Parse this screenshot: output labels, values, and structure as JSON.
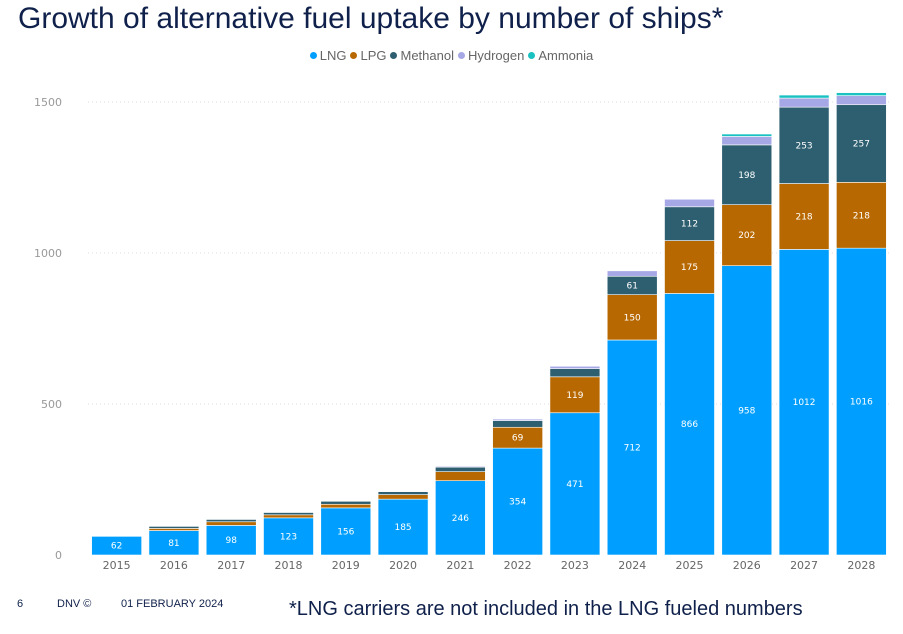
{
  "header": {
    "title": "Growth of alternative fuel uptake by number of ships*"
  },
  "colors": {
    "LNG": "#009fff",
    "LPG": "#b86800",
    "Methanol": "#2d5f70",
    "Hydrogen": "#a6a8e6",
    "Ammonia": "#19c1c1"
  },
  "chart_data": {
    "type": "bar",
    "stacked": true,
    "title": "",
    "xlabel": "",
    "ylabel": "",
    "ylim": [
      0,
      1500
    ],
    "yticks": [
      0,
      500,
      1000,
      1500
    ],
    "legend_position": "top-center",
    "grid": "horizontal-dotted",
    "categories": [
      "2015",
      "2016",
      "2017",
      "2018",
      "2019",
      "2020",
      "2021",
      "2022",
      "2023",
      "2024",
      "2025",
      "2026",
      "2027",
      "2028"
    ],
    "series": [
      {
        "name": "LNG",
        "values": [
          62,
          81,
          98,
          123,
          156,
          185,
          246,
          354,
          471,
          712,
          866,
          958,
          1012,
          1016
        ],
        "labels": [
          "62",
          "81",
          "98",
          "123",
          "156",
          "185",
          "246",
          "354",
          "471",
          "712",
          "866",
          "958",
          "1012",
          "1016"
        ]
      },
      {
        "name": "LPG",
        "values": [
          0,
          7,
          12,
          10,
          12,
          15,
          30,
          69,
          119,
          150,
          175,
          202,
          218,
          218
        ],
        "labels": [
          "",
          "",
          "",
          "",
          "",
          "",
          "",
          "69",
          "119",
          "150",
          "175",
          "202",
          "218",
          "218"
        ]
      },
      {
        "name": "Methanol",
        "values": [
          2,
          7,
          8,
          8,
          10,
          10,
          15,
          22,
          27,
          61,
          112,
          198,
          253,
          257
        ],
        "labels": [
          "",
          "",
          "",
          "",
          "",
          "",
          "",
          "",
          "",
          "61",
          "112",
          "198",
          "253",
          "257"
        ]
      },
      {
        "name": "Hydrogen",
        "values": [
          0,
          1,
          1,
          1,
          2,
          2,
          3,
          5,
          8,
          18,
          25,
          28,
          30,
          30
        ],
        "labels": [
          "",
          "",
          "",
          "",
          "",
          "",
          "",
          "",
          "",
          "",
          "",
          "",
          "",
          ""
        ]
      },
      {
        "name": "Ammonia",
        "values": [
          0,
          0,
          0,
          0,
          0,
          0,
          0,
          0,
          0,
          0,
          0,
          8,
          10,
          10
        ],
        "labels": [
          "",
          "",
          "",
          "",
          "",
          "",
          "",
          "",
          "",
          "",
          "",
          "",
          "",
          ""
        ]
      }
    ]
  },
  "footer": {
    "page_number": "6",
    "brand": "DNV ©",
    "date": "01 FEBRUARY 2024",
    "footnote": "*LNG carriers are not included in the LNG fueled numbers"
  }
}
